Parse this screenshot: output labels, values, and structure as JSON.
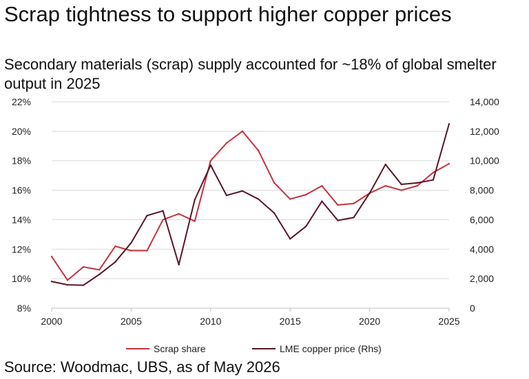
{
  "header": {
    "title": "Scrap tightness to support higher copper prices",
    "subtitle": "Secondary materials (scrap) supply accounted for ~18% of global smelter output in 2025"
  },
  "footer": {
    "source": "Source: Woodmac, UBS, as of May 2026"
  },
  "colors": {
    "scrap_share": "#c8303a",
    "lme_price": "#5a1424",
    "gridline": "#d9d9d9",
    "axis": "#bfbfbf"
  },
  "chart_data": {
    "type": "line",
    "x": [
      2000,
      2001,
      2002,
      2003,
      2004,
      2005,
      2006,
      2007,
      2008,
      2009,
      2010,
      2011,
      2012,
      2013,
      2014,
      2015,
      2016,
      2017,
      2018,
      2019,
      2020,
      2021,
      2022,
      2023,
      2024,
      2025
    ],
    "x_ticks": [
      "2000",
      "2005",
      "2010",
      "2015",
      "2020",
      "2025"
    ],
    "xlim": [
      2000,
      2025
    ],
    "y_left": {
      "ylim": [
        8,
        22
      ],
      "ticks": [
        "8%",
        "10%",
        "12%",
        "14%",
        "16%",
        "18%",
        "20%",
        "22%"
      ]
    },
    "y_right": {
      "ylim": [
        0,
        14000
      ],
      "ticks": [
        "0",
        "2,000",
        "4,000",
        "6,000",
        "8,000",
        "10,000",
        "12,000",
        "14,000"
      ]
    },
    "grid": true,
    "legend_position": "bottom",
    "series": [
      {
        "name": "Scrap share",
        "axis": "left",
        "values": [
          11.5,
          9.9,
          10.8,
          10.6,
          12.2,
          11.9,
          11.9,
          14.0,
          14.4,
          13.9,
          18.0,
          19.2,
          20.0,
          18.7,
          16.5,
          15.4,
          15.7,
          16.3,
          15.0,
          15.1,
          15.8,
          16.3,
          16.0,
          16.3,
          17.2,
          17.8
        ]
      },
      {
        "name": "LME copper price (Rhs)",
        "axis": "right",
        "values": [
          1810,
          1580,
          1560,
          2290,
          3130,
          4430,
          6280,
          6600,
          2950,
          7350,
          9700,
          7650,
          7950,
          7400,
          6450,
          4700,
          5550,
          7250,
          5950,
          6150,
          7800,
          9750,
          8400,
          8500,
          8700,
          12500
        ]
      }
    ]
  }
}
